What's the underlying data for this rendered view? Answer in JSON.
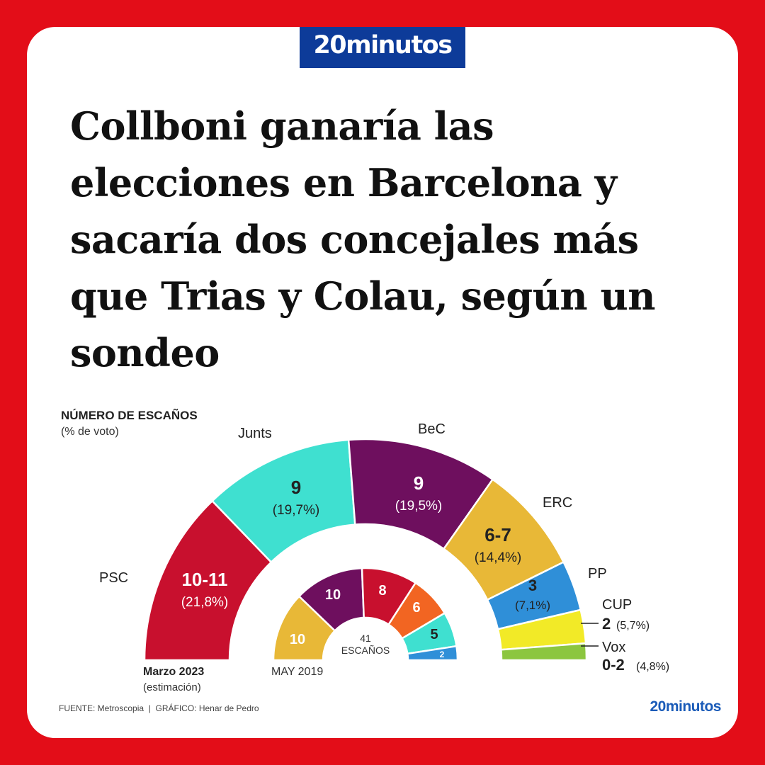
{
  "brand": {
    "name": "20minutos",
    "color": "#0d3b99"
  },
  "headline": "Collboni ganaría las elecciones en Barcelona y sacaría dos concejales más que Trias y Colau, según un sondeo",
  "chart_data": {
    "type": "pie",
    "subtype": "semicircle-parliament",
    "title": "NÚMERO DE ESCAÑOS",
    "subtitle": "(% de voto)",
    "outer": {
      "label": "Marzo 2023",
      "sublabel": "(estimación)",
      "series": [
        {
          "name": "PSC",
          "seats": "10-11",
          "vote": "(21,8%)",
          "value": 10.5,
          "color": "#c8102e"
        },
        {
          "name": "Junts",
          "seats": "9",
          "vote": "(19,7%)",
          "value": 9,
          "color": "#3fe0d0"
        },
        {
          "name": "BeC",
          "seats": "9",
          "vote": "(19,5%)",
          "value": 9,
          "color": "#6e0f5e"
        },
        {
          "name": "ERC",
          "seats": "6-7",
          "vote": "(14,4%)",
          "value": 6.5,
          "color": "#e8b837"
        },
        {
          "name": "PP",
          "seats": "3",
          "vote": "(7,1%)",
          "value": 3,
          "color": "#2f8fd8"
        },
        {
          "name": "CUP",
          "seats": "2",
          "vote": "(5,7%)",
          "value": 2,
          "color": "#f2ea27"
        },
        {
          "name": "Vox",
          "seats": "0-2",
          "vote": "(4,8%)",
          "value": 1,
          "color": "#8cc63f"
        }
      ]
    },
    "inner": {
      "label": "MAY 2019",
      "center_value": "41",
      "center_label": "ESCAÑOS",
      "series": [
        {
          "label": "10",
          "value": 10,
          "color": "#e8b837"
        },
        {
          "label": "10",
          "value": 10,
          "color": "#6e0f5e"
        },
        {
          "label": "8",
          "value": 8,
          "color": "#c8102e"
        },
        {
          "label": "6",
          "value": 6,
          "color": "#f26522"
        },
        {
          "label": "5",
          "value": 5,
          "color": "#3fe0d0"
        },
        {
          "label": "2",
          "value": 2,
          "color": "#2f8fd8"
        }
      ]
    },
    "source": "FUENTE: Metroscopia  |  GRÁFICO: Henar de Pedro",
    "watermark": "20minutos"
  }
}
